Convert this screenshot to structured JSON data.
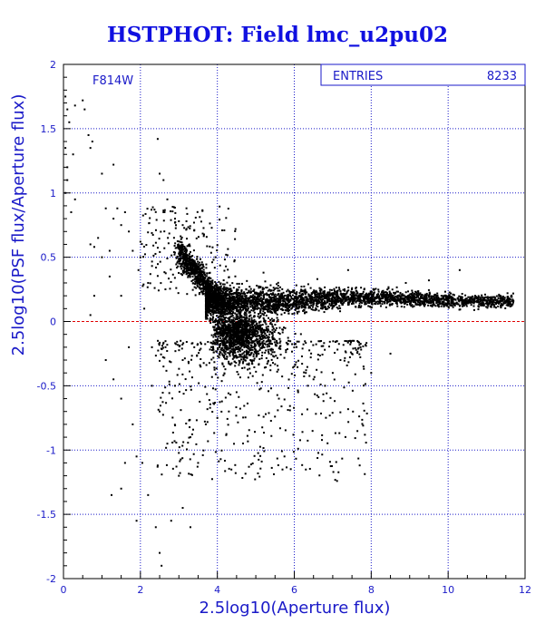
{
  "chart_data": {
    "type": "scatter",
    "title": "HSTPHOT: Field lmc_u2pu02",
    "xlabel": "2.5log10(Aperture flux)",
    "ylabel": "2.5log10(PSF flux/Aperture flux)",
    "xlim": [
      0,
      12
    ],
    "ylim": [
      -2,
      2
    ],
    "x_ticks": [
      0,
      2,
      4,
      6,
      8,
      10,
      12
    ],
    "y_ticks": [
      -2,
      -1.5,
      -1,
      -0.5,
      0,
      0.5,
      1,
      1.5,
      2
    ],
    "x_tick_labels": [
      "0",
      "2",
      "4",
      "6",
      "8",
      "10",
      "12"
    ],
    "y_tick_labels": [
      "-2",
      "-1.5",
      "-1",
      "-0.5",
      "0",
      "0.5",
      "1",
      "1.5",
      "2"
    ],
    "grid": true,
    "reference_line": {
      "y": 0,
      "color": "#e00000",
      "style": "dashed"
    },
    "annotation": "F814W",
    "stats_box": {
      "label": "ENTRIES",
      "value": "8233"
    },
    "series": [
      {
        "color": "#000000",
        "points": [
          [
            0.05,
            1.75
          ],
          [
            0.1,
            1.65
          ],
          [
            0.15,
            1.55
          ],
          [
            0.3,
            1.68
          ],
          [
            0.5,
            1.72
          ],
          [
            0.55,
            1.65
          ],
          [
            0.05,
            1.35
          ],
          [
            0.1,
            1.2
          ],
          [
            0.1,
            1.1
          ],
          [
            0.25,
            1.3
          ],
          [
            0.3,
            0.95
          ],
          [
            0.65,
            1.45
          ],
          [
            0.7,
            1.35
          ],
          [
            0.75,
            1.4
          ],
          [
            1.0,
            1.15
          ],
          [
            1.3,
            1.22
          ],
          [
            0.7,
            0.6
          ],
          [
            0.8,
            0.58
          ],
          [
            1.0,
            0.5
          ],
          [
            0.8,
            0.2
          ],
          [
            0.7,
            0.05
          ],
          [
            1.2,
            0.35
          ],
          [
            1.5,
            0.2
          ],
          [
            1.2,
            0.55
          ],
          [
            1.3,
            0.8
          ],
          [
            1.4,
            0.88
          ],
          [
            1.6,
            0.85
          ],
          [
            1.5,
            0.75
          ],
          [
            1.7,
            0.7
          ],
          [
            1.8,
            0.55
          ],
          [
            1.95,
            0.4
          ],
          [
            1.1,
            -0.3
          ],
          [
            1.3,
            -0.45
          ],
          [
            1.5,
            -0.6
          ],
          [
            1.7,
            -0.2
          ],
          [
            1.8,
            -0.8
          ],
          [
            1.6,
            -1.1
          ],
          [
            1.9,
            -1.05
          ],
          [
            1.25,
            -1.35
          ],
          [
            1.5,
            -1.3
          ],
          [
            1.9,
            -1.55
          ],
          [
            2.05,
            -1.1
          ],
          [
            2.2,
            -1.35
          ],
          [
            2.4,
            -1.6
          ],
          [
            2.5,
            -1.8
          ],
          [
            2.55,
            -1.9
          ],
          [
            2.8,
            -1.55
          ],
          [
            3.1,
            -1.45
          ],
          [
            3.3,
            -1.6
          ],
          [
            2.45,
            1.42
          ],
          [
            2.5,
            1.15
          ],
          [
            2.6,
            1.1
          ],
          [
            2.7,
            0.95
          ],
          [
            2.6,
            0.85
          ],
          [
            2.9,
            0.8
          ],
          [
            3.0,
            0.78
          ],
          [
            3.1,
            0.75
          ],
          [
            3.2,
            0.72
          ],
          [
            2.2,
            0.3
          ],
          [
            2.1,
            0.1
          ],
          [
            2.3,
            -0.2
          ],
          [
            2.5,
            -0.7
          ],
          [
            2.7,
            -0.95
          ],
          [
            3.0,
            -1.2
          ],
          [
            3.3,
            -0.9
          ],
          [
            3.5,
            -1.1
          ],
          [
            3.7,
            -0.8
          ],
          [
            4.0,
            -0.75
          ],
          [
            4.3,
            -0.7
          ],
          [
            4.5,
            -0.55
          ],
          [
            2.3,
            -0.5
          ],
          [
            2.6,
            -0.35
          ],
          [
            2.9,
            -0.5
          ],
          [
            3.1,
            -0.3
          ],
          [
            3.4,
            -0.2
          ],
          [
            0.05,
            1.0
          ],
          [
            0.2,
            0.85
          ],
          [
            0.9,
            0.65
          ],
          [
            1.1,
            0.88
          ],
          [
            2.0,
            0.5
          ],
          [
            6.0,
            -0.35
          ],
          [
            6.3,
            -0.4
          ],
          [
            6.5,
            -0.45
          ],
          [
            6.8,
            -0.5
          ],
          [
            7.0,
            -0.4
          ],
          [
            7.2,
            -0.3
          ],
          [
            7.5,
            -0.25
          ],
          [
            7.8,
            -0.35
          ],
          [
            8.0,
            -0.4
          ],
          [
            8.5,
            -0.25
          ],
          [
            9.2,
            0.2
          ],
          [
            10.3,
            0.4
          ],
          [
            5.2,
            0.38
          ],
          [
            6.6,
            0.33
          ],
          [
            7.4,
            0.4
          ],
          [
            8.9,
            0.3
          ],
          [
            9.5,
            0.32
          ],
          [
            3.9,
            0.48
          ],
          [
            5.6,
            -0.6
          ],
          [
            6.1,
            -0.55
          ]
        ]
      }
    ]
  }
}
